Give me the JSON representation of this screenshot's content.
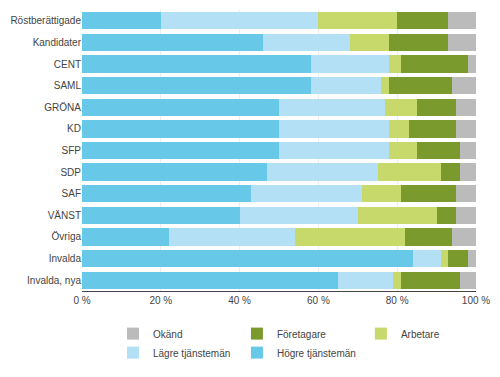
{
  "chart_data": {
    "type": "bar",
    "orientation": "horizontal",
    "stacked": true,
    "categories": [
      "Röstberättigade",
      "Kandidater",
      "CENT",
      "SAML",
      "GRÖNA",
      "KD",
      "SFP",
      "SDP",
      "SAF",
      "VÄNST",
      "Övriga",
      "Invalda",
      "Invalda, nya"
    ],
    "series": [
      {
        "name": "Högre tjänstemän",
        "color": "#67C8E8",
        "values": [
          20,
          46,
          58,
          58,
          50,
          50,
          50,
          47,
          43,
          40,
          22,
          84,
          65
        ]
      },
      {
        "name": "Lägre tjänstemän",
        "color": "#B3E0F5",
        "values": [
          40,
          22,
          20,
          18,
          27,
          28,
          28,
          28,
          28,
          30,
          32,
          7,
          14
        ]
      },
      {
        "name": "Arbetare",
        "color": "#C8D96B",
        "values": [
          20,
          10,
          3,
          2,
          8,
          5,
          7,
          16,
          10,
          20,
          28,
          2,
          2
        ]
      },
      {
        "name": "Företagare",
        "color": "#7A9A2E",
        "values": [
          13,
          15,
          17,
          16,
          10,
          12,
          11,
          5,
          14,
          5,
          12,
          5,
          15
        ]
      },
      {
        "name": "Okänd",
        "color": "#BBBBBB",
        "values": [
          7,
          7,
          2,
          6,
          5,
          5,
          4,
          4,
          5,
          5,
          6,
          2,
          4
        ]
      }
    ],
    "xlim": [
      0,
      100
    ],
    "xticks": [
      {
        "value": 0,
        "label": "0 %"
      },
      {
        "value": 20,
        "label": "20 %"
      },
      {
        "value": 40,
        "label": "40 %"
      },
      {
        "value": 60,
        "label": "60 %"
      },
      {
        "value": 80,
        "label": "80 %"
      },
      {
        "value": 100,
        "label": "100 %"
      }
    ],
    "grid": true,
    "legend": "bottom"
  }
}
